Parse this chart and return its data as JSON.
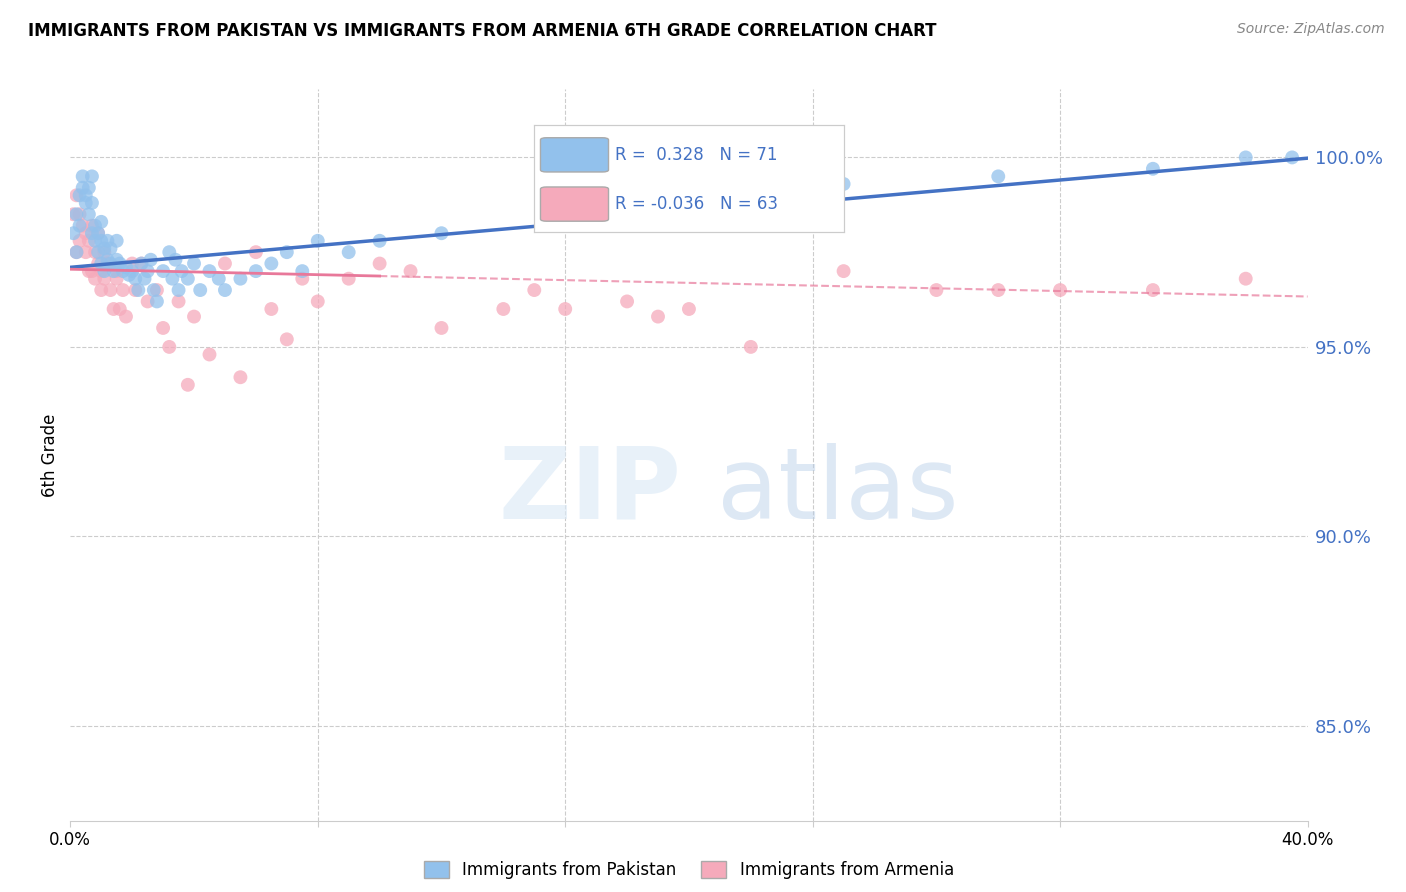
{
  "title": "IMMIGRANTS FROM PAKISTAN VS IMMIGRANTS FROM ARMENIA 6TH GRADE CORRELATION CHART",
  "source": "Source: ZipAtlas.com",
  "ylabel_ticks": [
    85.0,
    90.0,
    95.0,
    100.0
  ],
  "xmin": 0.0,
  "xmax": 40.0,
  "ymin": 82.5,
  "ymax": 101.8,
  "blue_R": 0.328,
  "blue_N": 71,
  "pink_R": -0.036,
  "pink_N": 63,
  "blue_color": "#92C1EC",
  "pink_color": "#F5AABB",
  "trendline_blue": "#4472C4",
  "trendline_pink": "#E8789A",
  "legend_label_blue": "Immigrants from Pakistan",
  "legend_label_pink": "Immigrants from Armenia",
  "blue_intercept": 97.1,
  "blue_slope": 0.072,
  "pink_intercept": 97.05,
  "pink_slope": -0.018,
  "pink_solid_end": 10.0,
  "blue_points_x": [
    0.1,
    0.2,
    0.2,
    0.3,
    0.3,
    0.4,
    0.4,
    0.5,
    0.5,
    0.6,
    0.6,
    0.7,
    0.7,
    0.7,
    0.8,
    0.8,
    0.9,
    0.9,
    1.0,
    1.0,
    1.0,
    1.1,
    1.1,
    1.2,
    1.2,
    1.3,
    1.3,
    1.4,
    1.5,
    1.5,
    1.6,
    1.7,
    1.8,
    1.9,
    2.0,
    2.1,
    2.2,
    2.3,
    2.4,
    2.5,
    2.6,
    2.7,
    2.8,
    3.0,
    3.2,
    3.3,
    3.4,
    3.5,
    3.6,
    3.8,
    4.0,
    4.2,
    4.5,
    4.8,
    5.0,
    5.5,
    6.0,
    6.5,
    7.0,
    7.5,
    8.0,
    9.0,
    10.0,
    12.0,
    16.0,
    20.0,
    25.0,
    30.0,
    35.0,
    38.0,
    39.5
  ],
  "blue_points_y": [
    98.0,
    98.5,
    97.5,
    98.2,
    99.0,
    99.5,
    99.2,
    98.8,
    99.0,
    98.5,
    99.2,
    98.0,
    98.8,
    99.5,
    97.8,
    98.2,
    97.5,
    98.0,
    97.2,
    97.8,
    98.3,
    97.0,
    97.6,
    97.3,
    97.8,
    97.2,
    97.6,
    97.0,
    97.3,
    97.8,
    97.2,
    97.0,
    97.1,
    96.9,
    97.0,
    96.8,
    96.5,
    97.2,
    96.8,
    97.0,
    97.3,
    96.5,
    96.2,
    97.0,
    97.5,
    96.8,
    97.3,
    96.5,
    97.0,
    96.8,
    97.2,
    96.5,
    97.0,
    96.8,
    96.5,
    96.8,
    97.0,
    97.2,
    97.5,
    97.0,
    97.8,
    97.5,
    97.8,
    98.0,
    98.8,
    99.0,
    99.3,
    99.5,
    99.7,
    100.0,
    100.0
  ],
  "pink_points_x": [
    0.1,
    0.2,
    0.2,
    0.3,
    0.3,
    0.4,
    0.5,
    0.5,
    0.6,
    0.6,
    0.7,
    0.7,
    0.8,
    0.8,
    0.9,
    0.9,
    1.0,
    1.0,
    1.1,
    1.1,
    1.2,
    1.3,
    1.4,
    1.5,
    1.5,
    1.6,
    1.7,
    1.8,
    2.0,
    2.1,
    2.3,
    2.5,
    2.8,
    3.0,
    3.2,
    3.5,
    3.8,
    4.0,
    4.5,
    5.0,
    5.5,
    6.0,
    6.5,
    7.0,
    7.5,
    8.0,
    9.0,
    10.0,
    11.0,
    12.0,
    14.0,
    15.0,
    16.0,
    18.0,
    19.0,
    20.0,
    22.0,
    25.0,
    28.0,
    30.0,
    32.0,
    35.0,
    38.0
  ],
  "pink_points_y": [
    98.5,
    99.0,
    97.5,
    97.8,
    98.5,
    98.2,
    97.5,
    98.0,
    97.0,
    97.8,
    98.2,
    97.0,
    97.5,
    96.8,
    97.2,
    98.0,
    97.0,
    96.5,
    97.5,
    96.8,
    97.2,
    96.5,
    96.0,
    97.0,
    96.8,
    96.0,
    96.5,
    95.8,
    97.2,
    96.5,
    97.2,
    96.2,
    96.5,
    95.5,
    95.0,
    96.2,
    94.0,
    95.8,
    94.8,
    97.2,
    94.2,
    97.5,
    96.0,
    95.2,
    96.8,
    96.2,
    96.8,
    97.2,
    97.0,
    95.5,
    96.0,
    96.5,
    96.0,
    96.2,
    95.8,
    96.0,
    95.0,
    97.0,
    96.5,
    96.5,
    96.5,
    96.5,
    96.8
  ]
}
